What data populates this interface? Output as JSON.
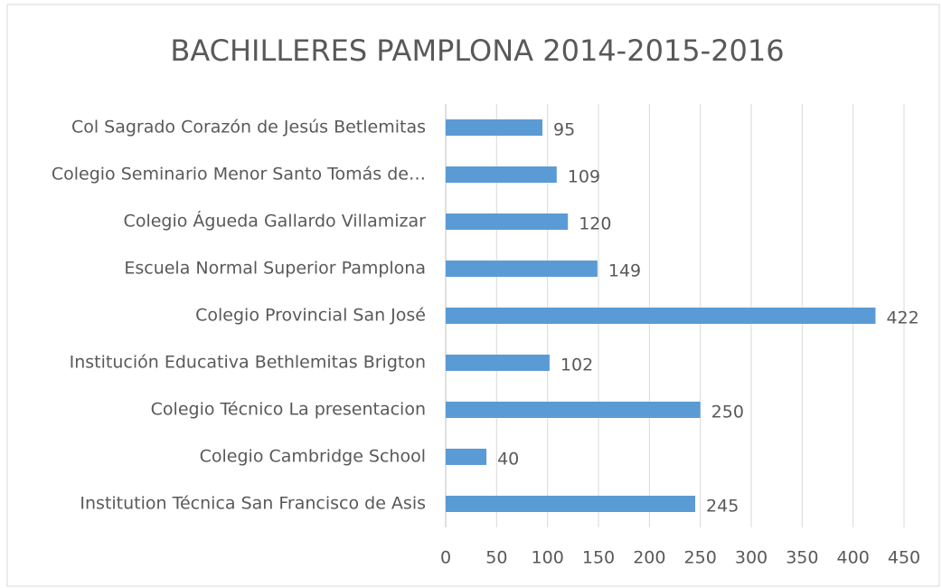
{
  "chart_data": {
    "type": "bar",
    "orientation": "horizontal",
    "title": "BACHILLERES PAMPLONA 2014-2015-2016",
    "categories": [
      "Col Sagrado Corazón de Jesús Betlemitas",
      "Colegio Seminario Menor Santo Tomás de…",
      "Colegio Águeda Gallardo Villamizar",
      "Escuela Normal Superior Pamplona",
      "Colegio Provincial San José",
      "Institución Educativa Bethlemitas Brigton",
      "Colegio Técnico La presentacion",
      "Colegio Cambridge School",
      "Institution Técnica San Francisco de Asis"
    ],
    "values": [
      95,
      109,
      120,
      149,
      422,
      102,
      250,
      40,
      245
    ],
    "color": "#5b9bd5",
    "xlim": [
      0,
      450
    ],
    "xticks": [
      0,
      50,
      100,
      150,
      200,
      250,
      300,
      350,
      400,
      450
    ],
    "grid": true
  }
}
